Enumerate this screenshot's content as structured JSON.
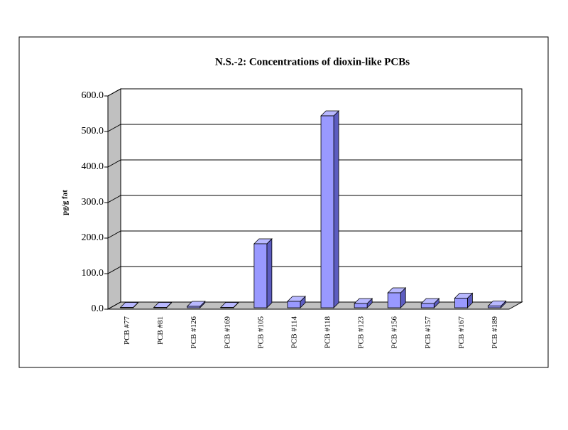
{
  "chart_data": {
    "type": "bar3d",
    "title": "N.S.-2: Concentrations of dioxin-like PCBs",
    "y_label": "pg/g fat",
    "categories": [
      "PCB #77",
      "PCB #81",
      "PCB #126",
      "PCB #169",
      "PCB #105",
      "PCB #114",
      "PCB #118",
      "PCB #123",
      "PCB #156",
      "PCB #157",
      "PCB #167",
      "PCB #189"
    ],
    "values": [
      1,
      1,
      4,
      1,
      180,
      18,
      540,
      12,
      42,
      12,
      27,
      5
    ],
    "color": "#9999ff",
    "ylim": [
      0,
      600
    ],
    "yticks": [
      {
        "value": 0,
        "label": "0.0"
      },
      {
        "value": 100,
        "label": "100.0"
      },
      {
        "value": 200,
        "label": "200.0"
      },
      {
        "value": 300,
        "label": "300.0"
      },
      {
        "value": 400,
        "label": "400.0"
      },
      {
        "value": 500,
        "label": "500.0"
      },
      {
        "value": 600,
        "label": "600.0"
      }
    ],
    "grid": true
  }
}
